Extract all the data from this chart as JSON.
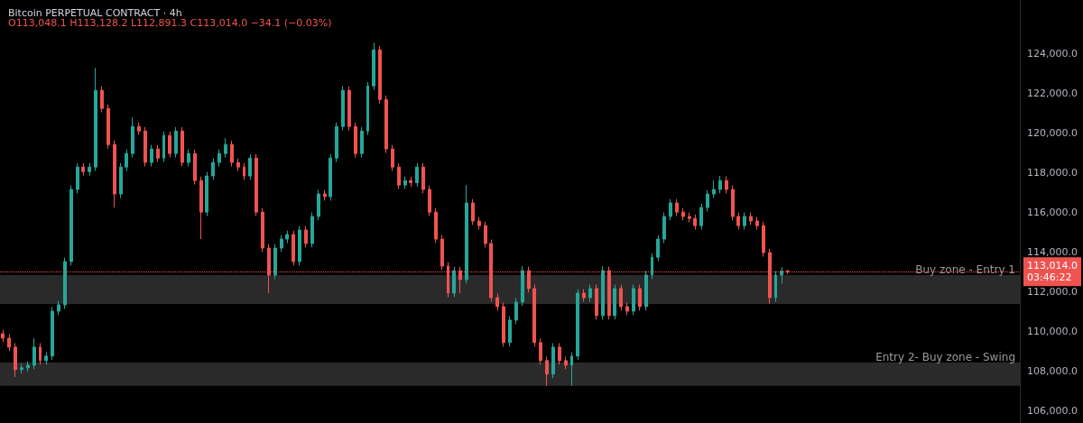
{
  "chart_data": {
    "type": "candlestick",
    "title": "Bitcoin PERPETUAL CONTRACT · 4h",
    "subtitle": "O113,048.1 H113,128.2 L112,891.3 C113,014.0 −34.1 (−0.03%)",
    "categories": [
      null,
      null,
      null,
      null,
      null,
      null,
      null,
      null,
      null,
      null,
      null,
      null,
      null,
      null,
      null,
      null,
      null,
      null,
      null,
      null,
      null,
      null,
      null,
      null,
      null,
      null,
      null,
      null,
      null,
      null,
      null,
      null,
      null,
      null,
      null,
      null,
      null,
      null,
      null,
      null,
      null,
      null,
      null,
      null,
      null,
      null,
      null,
      null,
      null,
      null,
      null,
      null,
      null,
      null,
      null,
      null,
      null,
      null,
      null,
      null,
      null,
      null,
      null,
      null,
      null,
      null,
      null,
      null,
      null,
      null,
      null,
      null,
      null,
      null,
      null,
      null,
      null,
      null,
      null,
      null,
      null,
      null,
      null,
      null,
      null,
      null,
      null,
      null,
      null,
      null,
      null,
      null,
      null,
      null,
      null,
      null,
      null,
      null,
      null,
      null,
      null,
      null,
      null,
      null,
      null,
      null,
      null,
      null,
      null,
      null,
      null,
      null,
      null,
      null,
      null,
      null,
      null,
      null,
      null,
      null,
      null,
      null,
      null,
      null,
      null,
      null,
      null,
      null,
      null,
      null,
      null,
      null,
      null,
      null,
      null,
      null,
      null,
      null,
      null,
      null,
      null,
      null,
      null,
      null,
      null,
      null,
      null,
      null,
      null,
      null,
      null,
      null,
      null,
      null,
      null,
      null,
      null,
      null,
      null,
      null,
      null,
      null,
      null,
      null,
      null
    ],
    "ohlc": [
      [
        109900,
        110100,
        109470,
        109670
      ],
      [
        109670,
        109870,
        109020,
        109220
      ],
      [
        109220,
        109420,
        107720,
        108090
      ],
      [
        108090,
        108380,
        107890,
        108180
      ],
      [
        108180,
        108510,
        107980,
        108310
      ],
      [
        108310,
        109670,
        108110,
        109220
      ],
      [
        109220,
        109420,
        108340,
        108540
      ],
      [
        108540,
        108970,
        108340,
        108770
      ],
      [
        108770,
        111230,
        108570,
        111030
      ],
      [
        111030,
        111550,
        110830,
        111350
      ],
      [
        111350,
        113730,
        111150,
        113530
      ],
      [
        113530,
        117360,
        113330,
        117160
      ],
      [
        117160,
        118490,
        116960,
        118290
      ],
      [
        118290,
        118490,
        117860,
        118060
      ],
      [
        118060,
        118490,
        117860,
        118290
      ],
      [
        118290,
        123280,
        118090,
        122150
      ],
      [
        122150,
        122350,
        121040,
        121240
      ],
      [
        121240,
        121440,
        119220,
        119420
      ],
      [
        119420,
        119620,
        116250,
        116930
      ],
      [
        116930,
        118490,
        116730,
        118290
      ],
      [
        118290,
        119170,
        118090,
        118970
      ],
      [
        118970,
        120780,
        118770,
        120330
      ],
      [
        120330,
        120530,
        119900,
        120100
      ],
      [
        120100,
        120300,
        118320,
        118520
      ],
      [
        118520,
        119400,
        118320,
        119200
      ],
      [
        119200,
        119400,
        118540,
        118740
      ],
      [
        118740,
        120080,
        118540,
        119880
      ],
      [
        119880,
        120080,
        118770,
        118970
      ],
      [
        118970,
        120300,
        118770,
        120100
      ],
      [
        120100,
        120300,
        118320,
        118520
      ],
      [
        118520,
        119170,
        118320,
        118970
      ],
      [
        118970,
        119170,
        117410,
        117610
      ],
      [
        117610,
        117810,
        114660,
        116020
      ],
      [
        116020,
        118040,
        115820,
        117840
      ],
      [
        117840,
        118720,
        117640,
        118520
      ],
      [
        118520,
        119170,
        118320,
        118970
      ],
      [
        118970,
        119740,
        118770,
        119420
      ],
      [
        119420,
        119620,
        118320,
        118520
      ],
      [
        118520,
        118720,
        118090,
        118290
      ],
      [
        118290,
        118490,
        117640,
        117840
      ],
      [
        117840,
        118940,
        117640,
        118740
      ],
      [
        118740,
        118940,
        115820,
        116020
      ],
      [
        116020,
        116220,
        114010,
        114210
      ],
      [
        114210,
        114410,
        111940,
        112850
      ],
      [
        112850,
        114410,
        112650,
        114210
      ],
      [
        114210,
        114860,
        114010,
        114660
      ],
      [
        114660,
        115090,
        114460,
        114890
      ],
      [
        114890,
        115090,
        113330,
        113530
      ],
      [
        113530,
        115320,
        113330,
        115120
      ],
      [
        115120,
        115320,
        114240,
        114440
      ],
      [
        114440,
        116000,
        114240,
        115800
      ],
      [
        115800,
        117130,
        115600,
        116930
      ],
      [
        116930,
        117130,
        116600,
        116800
      ],
      [
        116800,
        118940,
        116600,
        118740
      ],
      [
        118740,
        120530,
        118540,
        120330
      ],
      [
        120330,
        122370,
        120130,
        122150
      ],
      [
        122150,
        122350,
        120130,
        120330
      ],
      [
        120330,
        120530,
        118770,
        118970
      ],
      [
        118970,
        120300,
        118770,
        120100
      ],
      [
        120100,
        122570,
        119900,
        122370
      ],
      [
        122370,
        124550,
        122170,
        124190
      ],
      [
        124190,
        124390,
        121490,
        121690
      ],
      [
        121690,
        121890,
        119000,
        119200
      ],
      [
        119200,
        119400,
        118090,
        118290
      ],
      [
        118290,
        118490,
        117180,
        117380
      ],
      [
        117380,
        117810,
        117180,
        117610
      ],
      [
        117610,
        117810,
        117300,
        117500
      ],
      [
        117500,
        118490,
        117300,
        118290
      ],
      [
        118290,
        118490,
        116960,
        117160
      ],
      [
        117160,
        117360,
        115820,
        116020
      ],
      [
        116020,
        116220,
        114460,
        114660
      ],
      [
        114660,
        114860,
        113100,
        113300
      ],
      [
        113300,
        113500,
        111740,
        111940
      ],
      [
        111940,
        113270,
        111740,
        113070
      ],
      [
        113070,
        113270,
        111940,
        112620
      ],
      [
        112620,
        117380,
        112420,
        116480
      ],
      [
        116480,
        116680,
        115370,
        115570
      ],
      [
        115570,
        115770,
        115140,
        115340
      ],
      [
        115340,
        115540,
        114240,
        114440
      ],
      [
        114440,
        114640,
        111510,
        111710
      ],
      [
        111710,
        111910,
        111060,
        111260
      ],
      [
        111260,
        111460,
        109250,
        109450
      ],
      [
        109450,
        110780,
        109250,
        110580
      ],
      [
        110580,
        111690,
        110380,
        111490
      ],
      [
        111490,
        113300,
        111290,
        113070
      ],
      [
        113070,
        113270,
        111970,
        112170
      ],
      [
        112170,
        112370,
        109250,
        109450
      ],
      [
        109450,
        109650,
        108340,
        108540
      ],
      [
        108540,
        108740,
        107270,
        107860
      ],
      [
        107860,
        109420,
        107660,
        109220
      ],
      [
        109220,
        109420,
        108340,
        108540
      ],
      [
        108540,
        108740,
        108110,
        108310
      ],
      [
        108310,
        108970,
        107270,
        108770
      ],
      [
        108770,
        112140,
        108570,
        111940
      ],
      [
        111940,
        112140,
        111510,
        111710
      ],
      [
        111710,
        112370,
        111510,
        112170
      ],
      [
        112170,
        112370,
        110610,
        110810
      ],
      [
        110810,
        113300,
        110610,
        113070
      ],
      [
        113070,
        113270,
        110610,
        110810
      ],
      [
        110810,
        112370,
        110610,
        112170
      ],
      [
        112170,
        112370,
        111060,
        111260
      ],
      [
        111260,
        111460,
        110830,
        111030
      ],
      [
        111030,
        112370,
        110830,
        112170
      ],
      [
        112170,
        112370,
        111060,
        111260
      ],
      [
        111260,
        113050,
        111060,
        112850
      ],
      [
        112850,
        113950,
        112650,
        113750
      ],
      [
        113750,
        114860,
        113550,
        114660
      ],
      [
        114660,
        116000,
        114460,
        115800
      ],
      [
        115800,
        116680,
        115600,
        116480
      ],
      [
        116480,
        116680,
        115820,
        116020
      ],
      [
        116020,
        116220,
        115600,
        115800
      ],
      [
        115800,
        116000,
        115500,
        115700
      ],
      [
        115700,
        115900,
        115140,
        115340
      ],
      [
        115340,
        116450,
        115140,
        116250
      ],
      [
        116250,
        117130,
        116050,
        116930
      ],
      [
        116930,
        117610,
        116730,
        117160
      ],
      [
        117160,
        117840,
        116960,
        117610
      ],
      [
        117610,
        117810,
        116960,
        117160
      ],
      [
        117160,
        117360,
        115600,
        115800
      ],
      [
        115800,
        116000,
        115140,
        115340
      ],
      [
        115340,
        116000,
        115140,
        115800
      ],
      [
        115800,
        116000,
        115370,
        115570
      ],
      [
        115570,
        115770,
        115140,
        115340
      ],
      [
        115340,
        115540,
        113780,
        113980
      ],
      [
        113980,
        114180,
        111400,
        111710
      ],
      [
        111710,
        113050,
        111510,
        112850
      ],
      [
        112850,
        113250,
        112420,
        113048.1
      ],
      [
        113048.1,
        113128.2,
        112891.3,
        113014.0
      ],
      null,
      null,
      null,
      null,
      null,
      null,
      null,
      null,
      null,
      null,
      null,
      null,
      null,
      null,
      null,
      null,
      null,
      null,
      null,
      null,
      null,
      null,
      null,
      null,
      null,
      null,
      null,
      null,
      null,
      null,
      null,
      null,
      null,
      null,
      null,
      null,
      null
    ],
    "colors": [
      "#ef5350",
      "#ef5350",
      "#ef5350",
      "#26a69a",
      "#26a69a",
      "#26a69a",
      "#ef5350",
      "#26a69a",
      "#26a69a",
      "#26a69a",
      "#26a69a",
      "#26a69a",
      "#26a69a",
      "#ef5350",
      "#26a69a",
      "#26a69a",
      "#ef5350",
      "#ef5350",
      "#ef5350",
      "#26a69a",
      "#26a69a",
      "#26a69a",
      "#ef5350",
      "#ef5350",
      "#26a69a",
      "#ef5350",
      "#26a69a",
      "#ef5350",
      "#26a69a",
      "#ef5350",
      "#26a69a",
      "#ef5350",
      "#ef5350",
      "#26a69a",
      "#26a69a",
      "#26a69a",
      "#26a69a",
      "#ef5350",
      "#ef5350",
      "#ef5350",
      "#26a69a",
      "#ef5350",
      "#ef5350",
      "#ef5350",
      "#26a69a",
      "#26a69a",
      "#26a69a",
      "#ef5350",
      "#26a69a",
      "#ef5350",
      "#26a69a",
      "#26a69a",
      "#ef5350",
      "#26a69a",
      "#26a69a",
      "#26a69a",
      "#ef5350",
      "#ef5350",
      "#26a69a",
      "#26a69a",
      "#26a69a",
      "#ef5350",
      "#ef5350",
      "#ef5350",
      "#ef5350",
      "#26a69a",
      "#ef5350",
      "#26a69a",
      "#ef5350",
      "#ef5350",
      "#ef5350",
      "#ef5350",
      "#ef5350",
      "#26a69a",
      "#ef5350",
      "#26a69a",
      "#ef5350",
      "#ef5350",
      "#ef5350",
      "#ef5350",
      "#ef5350",
      "#ef5350",
      "#26a69a",
      "#26a69a",
      "#26a69a",
      "#ef5350",
      "#ef5350",
      "#ef5350",
      "#ef5350",
      "#26a69a",
      "#ef5350",
      "#ef5350",
      "#26a69a",
      "#26a69a",
      "#ef5350",
      "#26a69a",
      "#ef5350",
      "#26a69a",
      "#ef5350",
      "#26a69a",
      "#ef5350",
      "#ef5350",
      "#26a69a",
      "#ef5350",
      "#26a69a",
      "#26a69a",
      "#26a69a",
      "#26a69a",
      "#26a69a",
      "#ef5350",
      "#ef5350",
      "#ef5350",
      "#ef5350",
      "#26a69a",
      "#26a69a",
      "#26a69a",
      "#26a69a",
      "#ef5350",
      "#ef5350",
      "#ef5350",
      "#26a69a",
      "#ef5350",
      "#ef5350",
      "#ef5350",
      "#ef5350",
      "#26a69a",
      "#26a69a",
      "#ef5350",
      null,
      null,
      null,
      null,
      null,
      null,
      null,
      null,
      null,
      null,
      null,
      null,
      null,
      null,
      null,
      null,
      null,
      null,
      null,
      null,
      null,
      null,
      null,
      null,
      null,
      null,
      null,
      null,
      null,
      null,
      null,
      null,
      null,
      null,
      null,
      null,
      null
    ],
    "ylim": [
      105400,
      126700
    ],
    "yticks": [
      {
        "value": 106000,
        "label": "106,000.0"
      },
      {
        "value": 108000,
        "label": "108,000.0"
      },
      {
        "value": 110000,
        "label": "110,000.0"
      },
      {
        "value": 112000,
        "label": "112,000.0"
      },
      {
        "value": 114000,
        "label": "114,000.0"
      },
      {
        "value": 116000,
        "label": "116,000.0"
      },
      {
        "value": 118000,
        "label": "118,000.0"
      },
      {
        "value": 120000,
        "label": "120,000.0"
      },
      {
        "value": 122000,
        "label": "122,000.0"
      },
      {
        "value": 124000,
        "label": "124,000.0"
      }
    ],
    "ref_lines": [
      {
        "axis": "y",
        "value": 113014.0,
        "label": "113,014.0",
        "color": "#ef5350",
        "line_style": "dotted"
      }
    ],
    "bands": [
      {
        "axis": "y",
        "from": 111400,
        "to": 112850,
        "label": "Buy zone - Entry 1",
        "color": "#2a2a2a"
      },
      {
        "axis": "y",
        "from": 107270,
        "to": 108450,
        "label": "Entry 2- Buy zone - Swing",
        "color": "#2a2a2a"
      }
    ],
    "annotations": [
      "03:46:22"
    ],
    "grid": false
  }
}
